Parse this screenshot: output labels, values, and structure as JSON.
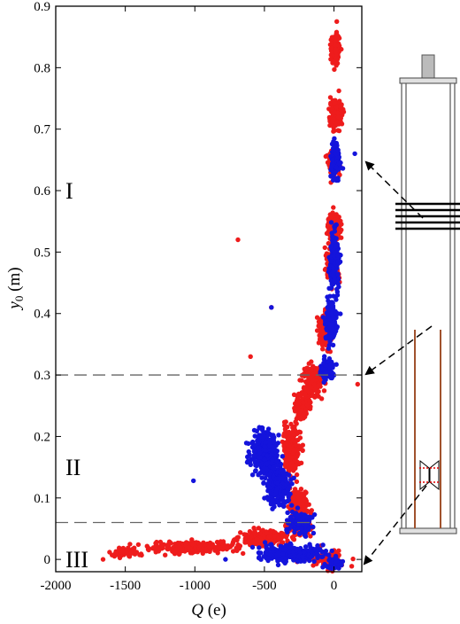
{
  "chart_data": {
    "type": "scatter",
    "xlabel": "Q (e)",
    "ylabel": "y0 (m)",
    "xlabel_parts": {
      "symbol": "Q",
      "unit": "(e)"
    },
    "ylabel_parts": {
      "symbol": "y",
      "subscript": "0",
      "unit": "(m)"
    },
    "xlim": [
      -2000,
      200
    ],
    "ylim": [
      -0.02,
      0.9
    ],
    "xticks": [
      -2000,
      -1500,
      -1000,
      -500,
      0
    ],
    "xtick_labels": [
      "-2000",
      "-1500",
      "-1000",
      "-500",
      "0"
    ],
    "yticks": [
      0,
      0.1,
      0.2,
      0.3,
      0.4,
      0.5,
      0.6,
      0.7,
      0.8,
      0.9
    ],
    "ytick_labels": [
      "0",
      "0.1",
      "0.2",
      "0.3",
      "0.4",
      "0.5",
      "0.6",
      "0.7",
      "0.8",
      "0.9"
    ],
    "grid": false,
    "reference_lines": [
      0.3,
      0.06
    ],
    "regions": [
      {
        "label": "I",
        "y": 0.6
      },
      {
        "label": "II",
        "y": 0.15
      },
      {
        "label": "III",
        "y": 0.0
      }
    ],
    "series": [
      {
        "color": "#ee1c1c",
        "clusters": [
          {
            "x": 10,
            "y": 0.83,
            "sx": 25,
            "sy": 0.018,
            "n": 140
          },
          {
            "x": 20,
            "y": 0.725,
            "sx": 40,
            "sy": 0.018,
            "n": 160
          },
          {
            "x": 0,
            "y": 0.64,
            "sx": 35,
            "sy": 0.02,
            "n": 80
          },
          {
            "x": 0,
            "y": 0.54,
            "sx": 40,
            "sy": 0.02,
            "n": 160
          },
          {
            "x": -10,
            "y": 0.48,
            "sx": 40,
            "sy": 0.03,
            "n": 100
          },
          {
            "x": -60,
            "y": 0.37,
            "sx": 40,
            "sy": 0.025,
            "n": 130
          },
          {
            "x": -150,
            "y": 0.29,
            "sx": 60,
            "sy": 0.02,
            "n": 140
          },
          {
            "x": -230,
            "y": 0.25,
            "sx": 50,
            "sy": 0.018,
            "n": 130
          },
          {
            "x": -300,
            "y": 0.18,
            "sx": 50,
            "sy": 0.04,
            "n": 220
          },
          {
            "x": -250,
            "y": 0.09,
            "sx": 60,
            "sy": 0.02,
            "n": 150
          },
          {
            "x": -250,
            "y": 0.055,
            "sx": 70,
            "sy": 0.012,
            "n": 140
          },
          {
            "x": -500,
            "y": 0.035,
            "sx": 150,
            "sy": 0.01,
            "n": 200
          },
          {
            "x": -1000,
            "y": 0.02,
            "sx": 250,
            "sy": 0.008,
            "n": 260
          },
          {
            "x": -1500,
            "y": 0.012,
            "sx": 100,
            "sy": 0.006,
            "n": 70
          },
          {
            "x": -50,
            "y": 0.0,
            "sx": 120,
            "sy": 0.012,
            "n": 70
          }
        ],
        "outliers": [
          {
            "x": -690,
            "y": 0.52
          },
          {
            "x": -450,
            "y": 0.41
          },
          {
            "x": -600,
            "y": 0.33
          },
          {
            "x": 20,
            "y": 0.875
          },
          {
            "x": 170,
            "y": 0.285
          },
          {
            "x": -1660,
            "y": 0.0
          }
        ]
      },
      {
        "color": "#1414dc",
        "clusters": [
          {
            "x": 10,
            "y": 0.65,
            "sx": 30,
            "sy": 0.025,
            "n": 150
          },
          {
            "x": 0,
            "y": 0.49,
            "sx": 30,
            "sy": 0.04,
            "n": 220
          },
          {
            "x": -20,
            "y": 0.39,
            "sx": 35,
            "sy": 0.03,
            "n": 150
          },
          {
            "x": -50,
            "y": 0.31,
            "sx": 40,
            "sy": 0.015,
            "n": 80
          },
          {
            "x": -500,
            "y": 0.175,
            "sx": 80,
            "sy": 0.03,
            "n": 350
          },
          {
            "x": -400,
            "y": 0.12,
            "sx": 80,
            "sy": 0.025,
            "n": 200
          },
          {
            "x": -250,
            "y": 0.06,
            "sx": 70,
            "sy": 0.015,
            "n": 140
          },
          {
            "x": -300,
            "y": 0.01,
            "sx": 200,
            "sy": 0.012,
            "n": 260
          },
          {
            "x": 0,
            "y": -0.005,
            "sx": 50,
            "sy": 0.008,
            "n": 60
          }
        ],
        "outliers": [
          {
            "x": -1010,
            "y": 0.128
          },
          {
            "x": -450,
            "y": 0.41
          },
          {
            "x": 150,
            "y": 0.66
          },
          {
            "x": -780,
            "y": 0.0
          }
        ]
      }
    ]
  }
}
